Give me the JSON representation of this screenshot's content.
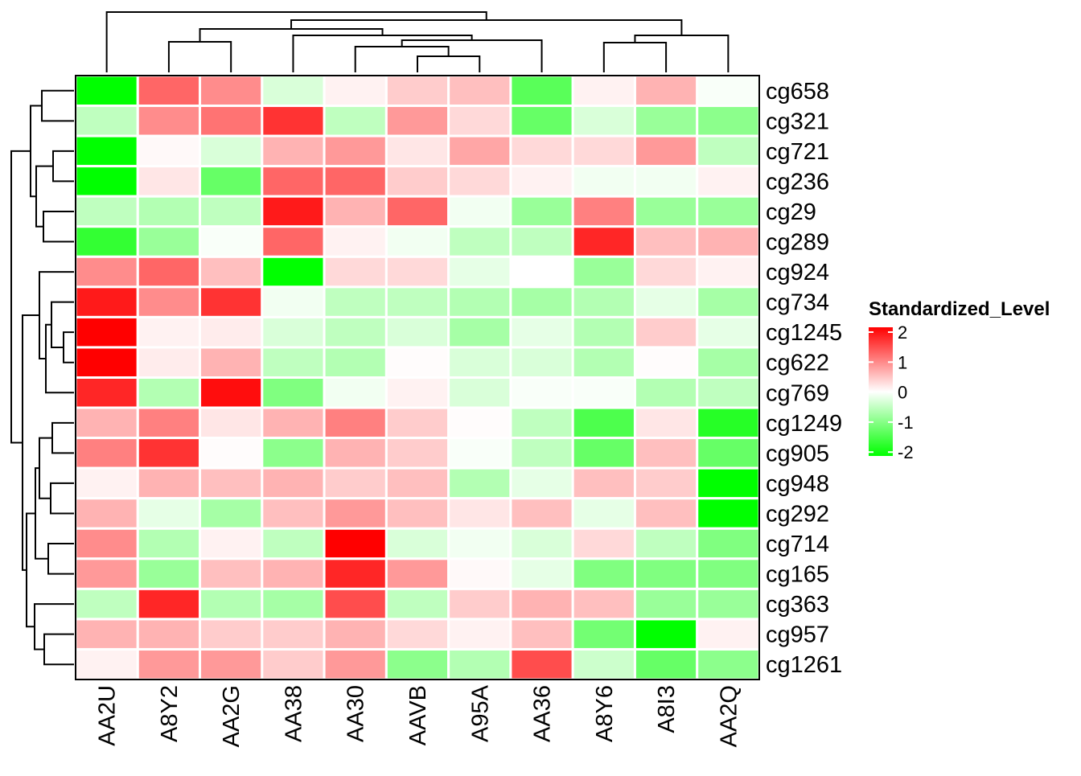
{
  "chart_data": {
    "type": "heatmap",
    "title": "",
    "columns": [
      "AA2U",
      "A8Y2",
      "AA2G",
      "AA38",
      "AA30",
      "AAVB",
      "A95A",
      "AA36",
      "A8Y6",
      "A8I3",
      "AA2Q"
    ],
    "rows": [
      "cg658",
      "cg321",
      "cg721",
      "cg236",
      "cg29",
      "cg289",
      "cg924",
      "cg734",
      "cg1245",
      "cg622",
      "cg769",
      "cg1249",
      "cg905",
      "cg948",
      "cg292",
      "cg714",
      "cg165",
      "cg363",
      "cg957",
      "cg1261"
    ],
    "values": [
      [
        -2.0,
        1.2,
        0.9,
        -0.3,
        0.1,
        0.4,
        0.5,
        -1.3,
        0.1,
        0.6,
        -0.05
      ],
      [
        -0.5,
        0.9,
        1.1,
        1.6,
        -0.5,
        0.8,
        0.3,
        -1.2,
        -0.3,
        -0.8,
        -0.9
      ],
      [
        -2.0,
        0.05,
        -0.3,
        0.6,
        0.8,
        0.2,
        0.7,
        0.3,
        0.3,
        0.8,
        -0.5
      ],
      [
        -2.0,
        0.2,
        -1.2,
        1.2,
        1.2,
        0.4,
        0.3,
        0.1,
        -0.1,
        -0.1,
        0.1
      ],
      [
        -0.5,
        -0.6,
        -0.5,
        1.8,
        0.6,
        1.2,
        -0.1,
        -0.8,
        1.0,
        -0.8,
        -0.8
      ],
      [
        -1.6,
        -0.8,
        -0.05,
        1.2,
        0.1,
        -0.1,
        -0.5,
        -0.5,
        1.7,
        0.5,
        0.6
      ],
      [
        0.9,
        1.2,
        0.5,
        -2.0,
        0.3,
        0.3,
        -0.2,
        0.0,
        -0.8,
        0.3,
        0.1
      ],
      [
        1.8,
        0.9,
        1.6,
        -0.1,
        -0.5,
        -0.5,
        -0.6,
        -0.7,
        -0.6,
        -0.2,
        -0.7
      ],
      [
        2.2,
        0.1,
        0.15,
        -0.3,
        -0.5,
        -0.3,
        -0.7,
        -0.2,
        -0.6,
        0.4,
        -0.2
      ],
      [
        2.2,
        0.15,
        0.6,
        -0.5,
        -0.6,
        0.02,
        -0.3,
        -0.3,
        -0.6,
        0.02,
        -0.7
      ],
      [
        1.7,
        -0.6,
        1.9,
        -1.0,
        -0.1,
        0.1,
        -0.3,
        -0.05,
        -0.05,
        -0.6,
        -0.5
      ],
      [
        0.6,
        1.0,
        0.2,
        0.6,
        1.0,
        0.4,
        0.02,
        -0.5,
        -1.4,
        0.2,
        -1.7
      ],
      [
        1.0,
        1.6,
        0.02,
        -0.9,
        0.6,
        0.4,
        -0.05,
        -0.5,
        -1.2,
        0.5,
        -1.2
      ],
      [
        0.1,
        0.6,
        0.5,
        0.6,
        0.4,
        0.5,
        -0.6,
        -0.2,
        0.5,
        0.4,
        -2.0
      ],
      [
        0.6,
        -0.2,
        -0.7,
        0.5,
        0.8,
        0.5,
        0.2,
        0.5,
        -0.2,
        0.5,
        -2.0
      ],
      [
        0.9,
        -0.6,
        0.1,
        -0.5,
        2.2,
        -0.3,
        -0.1,
        -0.3,
        0.3,
        -0.5,
        -1.0
      ],
      [
        0.8,
        -0.8,
        0.5,
        0.6,
        1.7,
        0.8,
        0.05,
        -0.2,
        -1.0,
        -1.0,
        -1.0
      ],
      [
        -0.5,
        1.7,
        -0.6,
        -0.7,
        1.4,
        -0.5,
        0.4,
        0.6,
        0.5,
        -0.8,
        -0.8
      ],
      [
        0.6,
        0.6,
        0.4,
        0.4,
        0.6,
        0.3,
        0.1,
        0.5,
        -1.1,
        -2.0,
        0.1
      ],
      [
        0.1,
        0.8,
        0.8,
        0.4,
        0.8,
        -0.9,
        -0.6,
        1.4,
        -0.4,
        -1.2,
        -0.9
      ]
    ],
    "color_scale": {
      "low": "#00FF00",
      "mid": "#FFFFFF",
      "high": "#FF0000",
      "range": [
        -2,
        2
      ]
    },
    "legend": {
      "title": "Standardized_Level",
      "ticks": [
        "2",
        "1",
        "0",
        "-1",
        "-2"
      ],
      "placement": "right"
    }
  }
}
